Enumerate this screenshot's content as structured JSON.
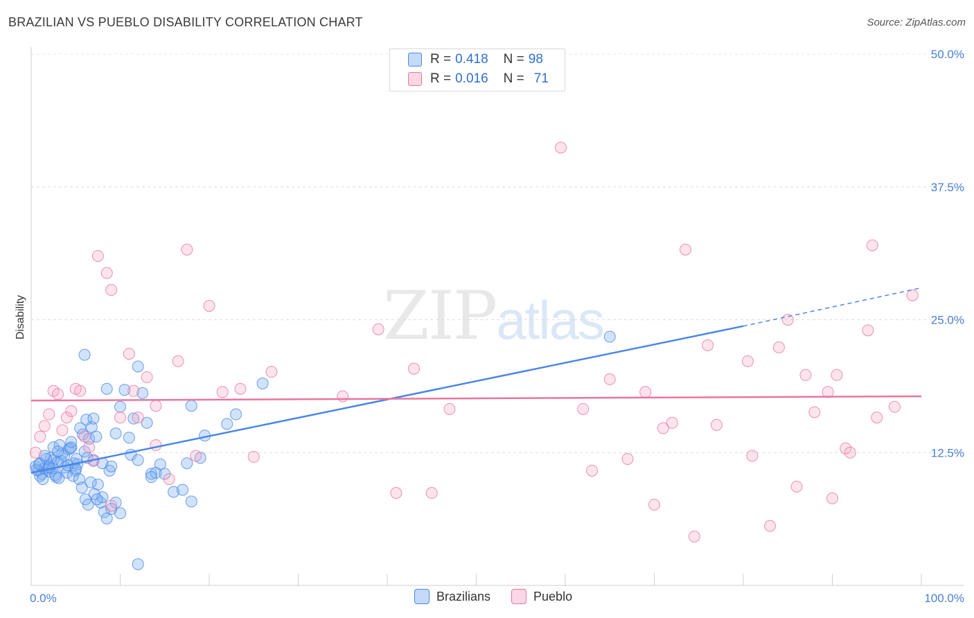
{
  "header": {
    "title": "BRAZILIAN VS PUEBLO DISABILITY CORRELATION CHART",
    "source": "Source: ZipAtlas.com"
  },
  "watermark": {
    "zip": "ZIP",
    "atlas": "atlas"
  },
  "legend": {
    "rows": [
      {
        "name": "Brazilians",
        "r_label": "R =",
        "r": "0.418",
        "n_label": "N =",
        "n": "98",
        "color": "#7aaef0"
      },
      {
        "name": "Pueblo",
        "r_label": "R =",
        "r": "0.016",
        "n_label": "N =",
        "n": "71",
        "color": "#f4a7c0"
      }
    ]
  },
  "chart_data": {
    "type": "scatter",
    "title": "BRAZILIAN VS PUEBLO DISABILITY CORRELATION CHART",
    "xlabel": "",
    "ylabel": "Disability",
    "xlim": [
      0,
      100
    ],
    "ylim": [
      0,
      50
    ],
    "x_tick_labels": [
      "0.0%",
      "100.0%"
    ],
    "y_tick_labels": [
      "12.5%",
      "25.0%",
      "37.5%",
      "50.0%"
    ],
    "y_tick_values": [
      12.5,
      25.0,
      37.5,
      50.0
    ],
    "series": [
      {
        "name": "Brazilians",
        "color": "#4a86e8",
        "fill": "rgba(122,174,240,0.35)",
        "trend": {
          "x0": 0,
          "y0": 10.6,
          "x1": 80,
          "y1": 24.4,
          "dash_to_x": 100,
          "dash_to_y": 28.0
        },
        "points": [
          [
            0.5,
            11.2
          ],
          [
            0.8,
            10.8
          ],
          [
            1.0,
            11.5
          ],
          [
            1.2,
            10.5
          ],
          [
            1.5,
            11.0
          ],
          [
            1.8,
            10.9
          ],
          [
            2.0,
            11.3
          ],
          [
            2.2,
            12.0
          ],
          [
            2.5,
            11.8
          ],
          [
            2.8,
            10.2
          ],
          [
            3.0,
            11.6
          ],
          [
            3.2,
            13.2
          ],
          [
            3.5,
            12.4
          ],
          [
            3.8,
            11.1
          ],
          [
            4.0,
            10.6
          ],
          [
            4.2,
            12.8
          ],
          [
            4.5,
            13.0
          ],
          [
            4.8,
            11.5
          ],
          [
            5.0,
            10.8
          ],
          [
            5.2,
            11.4
          ],
          [
            5.5,
            14.8
          ],
          [
            5.8,
            14.2
          ],
          [
            6.0,
            12.6
          ],
          [
            6.2,
            15.6
          ],
          [
            6.5,
            13.8
          ],
          [
            6.8,
            14.9
          ],
          [
            7.0,
            11.8
          ],
          [
            7.3,
            14.0
          ],
          [
            7.5,
            9.5
          ],
          [
            7.8,
            7.8
          ],
          [
            8.0,
            8.3
          ],
          [
            8.2,
            6.9
          ],
          [
            8.5,
            6.3
          ],
          [
            8.8,
            10.8
          ],
          [
            9.0,
            11.2
          ],
          [
            9.5,
            7.8
          ],
          [
            10.0,
            6.8
          ],
          [
            10.5,
            18.4
          ],
          [
            11.0,
            13.9
          ],
          [
            11.2,
            12.3
          ],
          [
            11.5,
            15.7
          ],
          [
            12.0,
            11.8
          ],
          [
            12.5,
            18.1
          ],
          [
            13.0,
            15.3
          ],
          [
            13.5,
            10.5
          ],
          [
            14.0,
            10.6
          ],
          [
            14.5,
            11.4
          ],
          [
            15.0,
            10.5
          ],
          [
            12.0,
            2.0
          ],
          [
            13.5,
            10.2
          ],
          [
            1.0,
            10.3
          ],
          [
            1.3,
            10.0
          ],
          [
            1.7,
            11.9
          ],
          [
            2.1,
            10.7
          ],
          [
            2.4,
            11.0
          ],
          [
            2.7,
            10.4
          ],
          [
            3.1,
            10.1
          ],
          [
            3.4,
            11.7
          ],
          [
            3.7,
            12.2
          ],
          [
            4.1,
            11.3
          ],
          [
            4.4,
            12.9
          ],
          [
            4.7,
            10.3
          ],
          [
            5.1,
            11.9
          ],
          [
            5.4,
            10.0
          ],
          [
            5.7,
            9.2
          ],
          [
            6.1,
            8.1
          ],
          [
            6.4,
            7.6
          ],
          [
            6.7,
            9.7
          ],
          [
            7.1,
            8.6
          ],
          [
            7.4,
            8.1
          ],
          [
            16.0,
            8.8
          ],
          [
            17.0,
            9.0
          ],
          [
            17.5,
            11.5
          ],
          [
            18.0,
            7.9
          ],
          [
            19.0,
            12.0
          ],
          [
            19.5,
            14.1
          ],
          [
            22.0,
            15.2
          ],
          [
            23.0,
            16.1
          ],
          [
            18.0,
            16.9
          ],
          [
            26.0,
            19.0
          ],
          [
            12.0,
            20.6
          ],
          [
            6.0,
            21.7
          ],
          [
            8.5,
            18.5
          ],
          [
            9.5,
            14.3
          ],
          [
            7.0,
            15.7
          ],
          [
            10.0,
            16.8
          ],
          [
            2.5,
            13.0
          ],
          [
            3.0,
            12.6
          ],
          [
            1.5,
            12.2
          ],
          [
            0.6,
            10.9
          ],
          [
            0.9,
            11.4
          ],
          [
            2.0,
            11.1
          ],
          [
            4.5,
            13.5
          ],
          [
            5.0,
            11.0
          ],
          [
            6.3,
            12.0
          ],
          [
            8.0,
            11.5
          ],
          [
            65.0,
            23.4
          ],
          [
            9.0,
            7.2
          ]
        ]
      },
      {
        "name": "Pueblo",
        "color": "#e8769c",
        "fill": "rgba(244,167,192,0.30)",
        "trend": {
          "x0": 0,
          "y0": 17.4,
          "x1": 100,
          "y1": 17.8
        },
        "points": [
          [
            0.5,
            12.5
          ],
          [
            1.0,
            14.0
          ],
          [
            1.5,
            15.0
          ],
          [
            2.0,
            16.1
          ],
          [
            2.5,
            18.3
          ],
          [
            3.0,
            18.0
          ],
          [
            3.5,
            14.6
          ],
          [
            4.0,
            15.8
          ],
          [
            4.5,
            16.4
          ],
          [
            5.0,
            18.5
          ],
          [
            5.5,
            18.3
          ],
          [
            6.0,
            14.0
          ],
          [
            6.5,
            13.0
          ],
          [
            7.0,
            11.7
          ],
          [
            7.5,
            31.0
          ],
          [
            8.5,
            29.4
          ],
          [
            9.0,
            27.8
          ],
          [
            9.0,
            7.5
          ],
          [
            10.0,
            15.8
          ],
          [
            11.0,
            21.8
          ],
          [
            11.5,
            18.3
          ],
          [
            12.0,
            15.8
          ],
          [
            13.0,
            19.6
          ],
          [
            14.0,
            16.9
          ],
          [
            14.0,
            13.2
          ],
          [
            15.5,
            10.0
          ],
          [
            16.5,
            21.1
          ],
          [
            17.5,
            31.6
          ],
          [
            18.5,
            12.2
          ],
          [
            20.0,
            26.3
          ],
          [
            21.5,
            18.2
          ],
          [
            23.5,
            18.5
          ],
          [
            25.0,
            12.1
          ],
          [
            27.0,
            20.1
          ],
          [
            35.0,
            17.8
          ],
          [
            39.0,
            24.1
          ],
          [
            41.0,
            8.7
          ],
          [
            43.0,
            20.4
          ],
          [
            45.0,
            8.7
          ],
          [
            47.0,
            16.6
          ],
          [
            59.5,
            41.2
          ],
          [
            62.0,
            16.6
          ],
          [
            63.0,
            10.8
          ],
          [
            65.0,
            19.4
          ],
          [
            67.0,
            11.9
          ],
          [
            69.0,
            18.2
          ],
          [
            70.0,
            7.6
          ],
          [
            71.0,
            14.8
          ],
          [
            72.0,
            15.3
          ],
          [
            73.5,
            31.6
          ],
          [
            74.5,
            4.6
          ],
          [
            76.0,
            22.6
          ],
          [
            77.0,
            15.1
          ],
          [
            80.5,
            21.1
          ],
          [
            81.0,
            12.2
          ],
          [
            83.0,
            5.6
          ],
          [
            84.0,
            22.4
          ],
          [
            85.0,
            25.0
          ],
          [
            86.0,
            9.3
          ],
          [
            87.0,
            19.8
          ],
          [
            88.0,
            16.3
          ],
          [
            89.5,
            18.2
          ],
          [
            90.0,
            8.2
          ],
          [
            90.5,
            19.8
          ],
          [
            91.5,
            12.9
          ],
          [
            92.0,
            12.5
          ],
          [
            94.0,
            24.0
          ],
          [
            94.5,
            32.0
          ],
          [
            95.0,
            15.8
          ],
          [
            97.0,
            16.8
          ],
          [
            99.0,
            27.3
          ]
        ]
      }
    ]
  }
}
